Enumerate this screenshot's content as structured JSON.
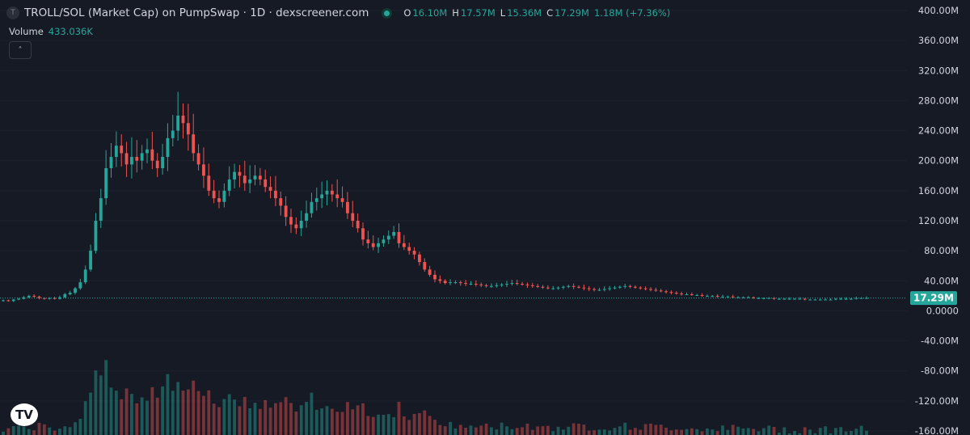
{
  "header": {
    "symbol_icon": "T",
    "title": "TROLL/SOL (Market Cap) on PumpSwap · 1D · dexscreener.com",
    "ohlc": {
      "o_label": "O",
      "o": "16.10M",
      "h_label": "H",
      "h": "17.57M",
      "l_label": "L",
      "l": "15.36M",
      "c_label": "C",
      "c": "17.29M",
      "change": "1.18M (+7.36%)"
    }
  },
  "volume": {
    "label": "Volume",
    "value": "433.036K"
  },
  "collapse_icon": "chevron-up-icon",
  "logo": "tradingview-logo",
  "colors": {
    "up": "#26a69a",
    "down": "#ef5350",
    "background": "#161a25",
    "grid": "#1e222d"
  },
  "chart_data": {
    "type": "candlestick",
    "units": "market cap (USD)",
    "y_ticks": [
      "400.00M",
      "360.00M",
      "320.00M",
      "280.00M",
      "240.00M",
      "200.00M",
      "160.00M",
      "120.00M",
      "80.00M",
      "40.00M",
      "0.0000",
      "-40.00M",
      "-80.00M",
      "-120.00M",
      "-160.00M"
    ],
    "ylim": [
      -160,
      400
    ],
    "last_price": "17.29M",
    "close_series_millions": [
      14,
      13,
      15,
      16,
      18,
      20,
      19,
      17,
      16,
      17,
      16,
      18,
      22,
      24,
      30,
      38,
      55,
      80,
      120,
      150,
      190,
      205,
      220,
      210,
      195,
      205,
      200,
      210,
      215,
      200,
      190,
      205,
      230,
      240,
      260,
      250,
      235,
      210,
      195,
      180,
      160,
      150,
      145,
      160,
      175,
      185,
      180,
      170,
      175,
      180,
      175,
      165,
      160,
      150,
      140,
      125,
      115,
      110,
      120,
      130,
      145,
      150,
      155,
      160,
      155,
      150,
      145,
      130,
      120,
      110,
      95,
      90,
      85,
      90,
      95,
      100,
      105,
      90,
      85,
      80,
      75,
      65,
      55,
      48,
      42,
      40,
      37,
      38,
      38,
      37,
      36,
      36,
      35,
      34,
      33,
      33,
      34,
      35,
      36,
      37,
      36,
      35,
      34,
      33,
      32,
      31,
      30,
      30,
      31,
      32,
      33,
      32,
      31,
      30,
      29,
      28,
      28,
      29,
      30,
      31,
      32,
      33,
      32,
      31,
      30,
      29,
      28,
      27,
      26,
      25,
      24,
      23,
      22,
      22,
      21,
      21,
      20,
      20,
      20,
      19,
      19,
      19,
      18,
      18,
      18,
      18,
      17,
      17,
      17,
      17,
      16,
      16,
      16,
      16,
      16,
      16,
      15,
      15,
      15,
      15,
      15,
      15,
      16,
      16,
      16,
      16,
      17,
      17,
      17
    ],
    "volume_note": "volume bars shown at bottom, peak near early rally"
  }
}
